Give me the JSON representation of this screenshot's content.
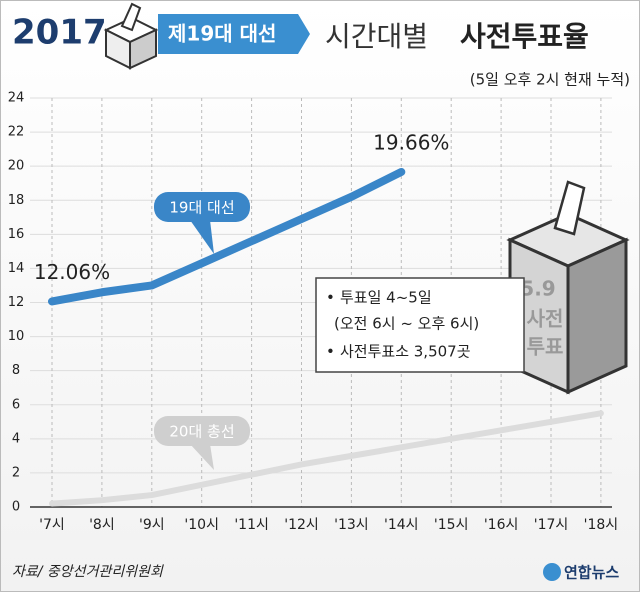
{
  "chart_data": {
    "type": "line",
    "logo": "2017",
    "badge": "제19대 대선",
    "title_regular": "시간대별",
    "title_bold": "사전투표율",
    "subtitle": "(5일 오후 2시 현재 누적)",
    "categories": [
      "'7시",
      "'8시",
      "'9시",
      "'10시",
      "'11시",
      "'12시",
      "'13시",
      "'14시",
      "'15시",
      "'16시",
      "'17시",
      "'18시"
    ],
    "series": [
      {
        "name": "19대 대선",
        "color": "#3a86c8",
        "values": [
          12.06,
          12.6,
          13.0,
          14.3,
          15.6,
          16.9,
          18.2,
          19.66,
          null,
          null,
          null,
          null
        ],
        "value_labels": [
          "12.06%",
          null,
          null,
          null,
          null,
          null,
          null,
          "19.66%",
          null,
          null,
          null,
          null
        ]
      },
      {
        "name": "20대 총선",
        "color": "#dcdcdc",
        "values": [
          0.2,
          0.4,
          0.7,
          1.3,
          1.9,
          2.5,
          3.0,
          3.5,
          4.0,
          4.5,
          5.0,
          5.5
        ]
      }
    ],
    "ylim": [
      0,
      24
    ],
    "yticks": [
      0,
      2,
      4,
      6,
      8,
      10,
      12,
      14,
      16,
      18,
      20,
      22,
      24
    ],
    "grid": true,
    "notes": [
      "투표일 4~5일",
      "(오전 6시 ~ 오후 6시)",
      "사전투표소 3,507곳"
    ],
    "ballot_text": [
      "5.9",
      "사전",
      "투표"
    ],
    "source": "자료/ 중앙선거관리위원회",
    "agency": "연합뉴스"
  }
}
